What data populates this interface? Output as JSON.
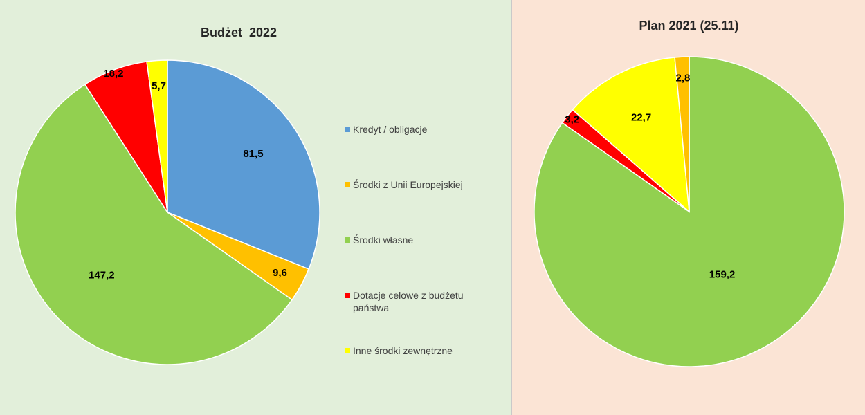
{
  "legend": [
    {
      "label": "Kredyt / obligacje",
      "color": "#5b9bd5"
    },
    {
      "label": "Środki z Unii Europejskiej",
      "color": "#ffc000"
    },
    {
      "label": "Środki własne",
      "color": "#92d050"
    },
    {
      "label": "Dotacje celowe z budżetu państwa",
      "color": "#ff0000"
    },
    {
      "label": "Inne środki zewnętrzne",
      "color": "#ffff00"
    }
  ],
  "chart_data": [
    {
      "type": "pie",
      "title": "Budżet  2022",
      "background": "#e2efda",
      "slices": [
        {
          "category": "Kredyt / obligacje",
          "value": 81.5,
          "label": "81,5",
          "color": "#5b9bd5"
        },
        {
          "category": "Środki z Unii Europejskiej",
          "value": 9.6,
          "label": "9,6",
          "color": "#ffc000"
        },
        {
          "category": "Środki własne",
          "value": 147.2,
          "label": "147,2",
          "color": "#92d050"
        },
        {
          "category": "Dotacje celowe z budżetu państwa",
          "value": 18.2,
          "label": "18,2",
          "color": "#ff0000"
        },
        {
          "category": "Inne środki zewnętrzne",
          "value": 5.7,
          "label": "5,7",
          "color": "#ffff00"
        }
      ],
      "legend_position": "right"
    },
    {
      "type": "pie",
      "title": "Plan 2021 (25.11)",
      "background": "#fbe4d5",
      "slices": [
        {
          "category": "Środki własne",
          "value": 159.2,
          "label": "159,2",
          "color": "#92d050"
        },
        {
          "category": "Dotacje celowe z budżetu państwa",
          "value": 3.2,
          "label": "3,2",
          "color": "#ff0000"
        },
        {
          "category": "Inne środki zewnętrzne",
          "value": 22.7,
          "label": "22,7",
          "color": "#ffff00"
        },
        {
          "category": "Środki z Unii Europejskiej",
          "value": 2.8,
          "label": "2,8",
          "color": "#ffc000"
        }
      ]
    }
  ]
}
